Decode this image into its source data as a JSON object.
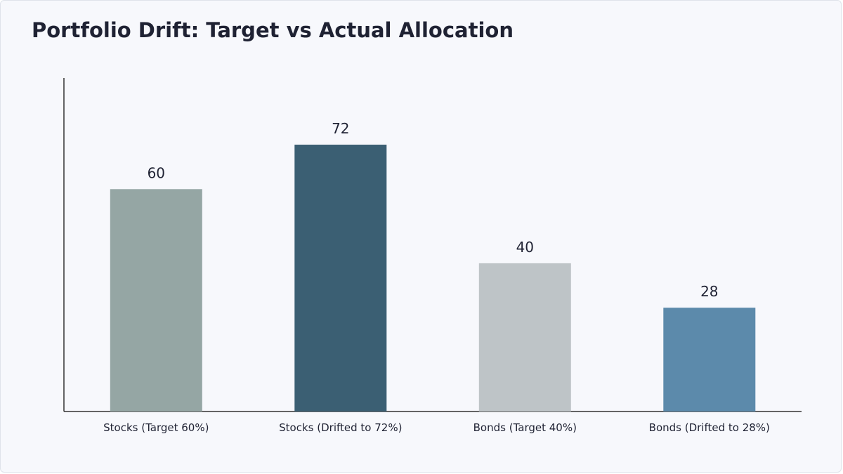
{
  "chart_data": {
    "type": "bar",
    "title": "Portfolio Drift: Target vs Actual Allocation",
    "xlabel": "",
    "ylabel": "",
    "categories": [
      "Stocks (Target 60%)",
      "Stocks (Drifted to 72%)",
      "Bonds (Target 40%)",
      "Bonds (Drifted to 28%)"
    ],
    "values": [
      60,
      72,
      40,
      28
    ],
    "data_labels": [
      "60",
      "72",
      "40",
      "28"
    ],
    "bar_colors": [
      "#95a6a4",
      "#3b5f73",
      "#bec4c7",
      "#5c8aab"
    ],
    "ylim": [
      0,
      90
    ],
    "grid": false,
    "legend": "none"
  },
  "colors": {
    "background": "#f7f8fc",
    "axis": "#333333",
    "text": "#1f2233"
  }
}
